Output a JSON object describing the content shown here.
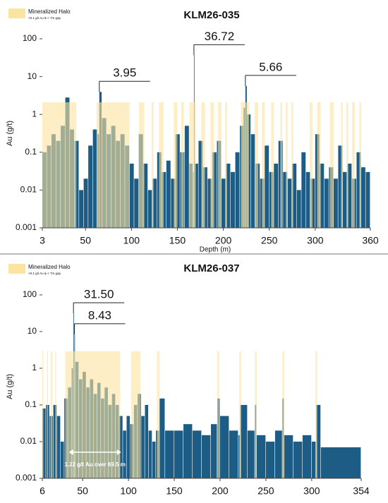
{
  "chart_data": [
    {
      "type": "bar",
      "title": "KLM26-035",
      "x_label": "Depth (m)",
      "y_label": "Au (g/t)",
      "log_scale": true,
      "color": "#1d5d85",
      "legend": {
        "name": "Mineralized Halo",
        "note": ">0.1 g/t Au & < 7m gap",
        "color": "#fbe3a0"
      },
      "x": [
        3,
        8,
        13,
        18,
        23,
        28,
        33,
        38,
        43,
        48,
        53,
        58,
        63,
        65,
        68,
        73,
        78,
        83,
        88,
        93,
        98,
        103,
        108,
        113,
        118,
        123,
        128,
        133,
        138,
        143,
        148,
        153,
        158,
        163,
        167,
        168,
        169,
        173,
        178,
        183,
        188,
        193,
        198,
        203,
        208,
        213,
        218,
        222,
        224,
        226,
        230,
        235,
        240,
        245,
        250,
        255,
        260,
        265,
        270,
        275,
        280,
        285,
        290,
        295,
        300,
        305,
        310,
        315,
        320,
        325,
        330,
        335,
        340,
        345,
        350,
        355
      ],
      "values": [
        0.1,
        0.15,
        0.3,
        0.2,
        0.5,
        2.8,
        0.4,
        0.2,
        0.01,
        0.02,
        0.15,
        0.4,
        0.3,
        3.95,
        0.8,
        0.3,
        0.5,
        0.2,
        0.3,
        0.15,
        0.05,
        0.02,
        0.3,
        0.05,
        0.01,
        0.02,
        0.1,
        0.03,
        0.06,
        0.02,
        0.3,
        0.1,
        0.5,
        0.05,
        0.03,
        36.72,
        0.05,
        0.2,
        0.04,
        0.02,
        0.1,
        0.2,
        0.02,
        0.05,
        0.03,
        0.1,
        0.5,
        1.5,
        5.66,
        1,
        0.3,
        0.05,
        0.02,
        0.15,
        0.03,
        0.05,
        0.2,
        0.03,
        0.02,
        0.05,
        0.01,
        0.1,
        0.03,
        0.02,
        0.3,
        0.05,
        0.02,
        0.04,
        0.02,
        0.15,
        0.03,
        0.05,
        0.02,
        0.1,
        0.04,
        0.03
      ],
      "halo": [
        [
          3,
          40
        ],
        [
          62,
          98
        ],
        [
          108,
          114
        ],
        [
          122,
          124
        ],
        [
          130,
          135
        ],
        [
          146,
          150
        ],
        [
          154,
          157
        ],
        [
          163,
          170
        ],
        [
          176,
          180
        ],
        [
          186,
          190
        ],
        [
          194,
          198
        ],
        [
          202,
          204
        ],
        [
          219,
          228
        ],
        [
          234,
          238
        ],
        [
          242,
          245
        ],
        [
          252,
          255
        ],
        [
          262,
          264
        ],
        [
          268,
          270
        ],
        [
          274,
          276
        ],
        [
          294,
          297
        ],
        [
          302,
          306
        ],
        [
          316,
          320
        ],
        [
          328,
          330
        ],
        [
          334,
          336
        ],
        [
          340,
          343
        ],
        [
          348,
          350
        ]
      ],
      "callouts": [
        {
          "x": 65,
          "y": 3.95
        },
        {
          "x": 168,
          "y": 36.72
        },
        {
          "x": 224,
          "y": 5.66
        }
      ],
      "xlim": [
        3,
        360
      ],
      "xticks": [
        3,
        50,
        100,
        150,
        200,
        250,
        300,
        360
      ],
      "ylim": [
        0.001,
        100
      ],
      "yticks": [
        0.001,
        0.01,
        0.1,
        1,
        10,
        100
      ]
    },
    {
      "type": "bar",
      "title": "KLM26-037",
      "y_label": "Au (g/t)",
      "log_scale": true,
      "color": "#1d5d85",
      "legend": {
        "name": "Mineralized Halo",
        "note": ">0.1 g/t Au & < 7m gap",
        "color": "#fbe3a0"
      },
      "x": [
        6,
        10,
        14,
        18,
        22,
        26,
        30,
        34,
        38,
        40,
        41,
        42,
        46,
        50,
        54,
        58,
        62,
        66,
        70,
        74,
        78,
        82,
        86,
        90,
        94,
        98,
        102,
        106,
        110,
        114,
        118,
        122,
        126,
        130,
        134,
        140,
        150,
        160,
        170,
        180,
        190,
        197,
        200,
        210,
        220,
        222,
        230,
        238,
        240,
        250,
        260,
        268,
        270,
        280,
        290,
        300,
        305,
        310
      ],
      "values": [
        0.08,
        0.1,
        0.05,
        0.1,
        0.05,
        0.01,
        0.15,
        0.3,
        1,
        31.5,
        8.43,
        1.5,
        0.5,
        0.8,
        0.3,
        0.5,
        0.2,
        0.4,
        0.15,
        0.3,
        0.1,
        0.2,
        0.1,
        0.05,
        0.02,
        0.05,
        0.03,
        0.1,
        0.2,
        0.05,
        0.1,
        0.02,
        0.01,
        0.02,
        0.15,
        0.02,
        0.02,
        0.03,
        0.02,
        0.015,
        0.03,
        0.15,
        0.05,
        0.02,
        0.015,
        0.1,
        0.02,
        0.1,
        0.015,
        0.01,
        0.02,
        0.15,
        0.015,
        0.01,
        0.015,
        0.01,
        0.1,
        0.007
      ],
      "halo": [
        [
          6,
          7
        ],
        [
          11,
          12
        ],
        [
          15,
          17
        ],
        [
          20,
          21
        ],
        [
          31,
          91
        ],
        [
          103,
          113
        ],
        [
          131,
          134
        ],
        [
          197,
          199
        ],
        [
          221,
          223
        ],
        [
          238,
          240
        ],
        [
          268,
          270
        ],
        [
          304,
          306
        ]
      ],
      "callouts": [
        {
          "x": 40,
          "y": {
            "value": 31.5,
            "label": "31.50"
          }
        },
        {
          "x": 41,
          "y": 8.43
        }
      ],
      "annotation": {
        "text": "1.22 g/t Au over 69.5 m",
        "from": 35,
        "to": 92
      },
      "xlim": [
        6,
        354
      ],
      "xticks": [
        6,
        50,
        100,
        150,
        200,
        250,
        300,
        354
      ],
      "ylim": [
        0.001,
        100
      ],
      "yticks": [
        0.001,
        0.01,
        0.1,
        1,
        10,
        100
      ]
    }
  ]
}
